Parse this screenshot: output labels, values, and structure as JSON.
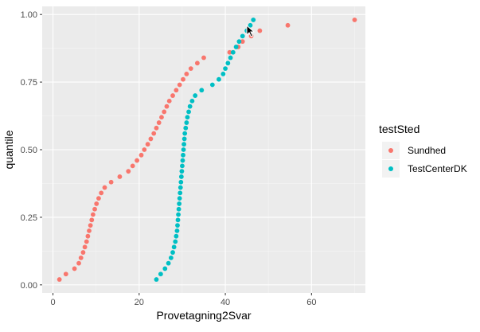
{
  "chart_data": {
    "type": "scatter",
    "xlabel": "Provetagning2Svar",
    "ylabel": "quantile",
    "xlim": [
      -2.5,
      72.5
    ],
    "ylim": [
      -0.03,
      1.03
    ],
    "xticks": [
      0,
      20,
      40,
      60
    ],
    "xtick_labels": [
      "0",
      "20",
      "40",
      "60"
    ],
    "yticks": [
      0.0,
      0.25,
      0.5,
      0.75,
      1.0
    ],
    "ytick_labels": [
      "0.00",
      "0.25",
      "0.50",
      "0.75",
      "1.00"
    ],
    "grid": true,
    "legend": {
      "title": "testSted",
      "position": "right"
    },
    "series": [
      {
        "name": "Sundhed",
        "color": "#F8766D",
        "points": [
          [
            1.5,
            0.02
          ],
          [
            3,
            0.04
          ],
          [
            5,
            0.06
          ],
          [
            6,
            0.08
          ],
          [
            6.5,
            0.1
          ],
          [
            7,
            0.12
          ],
          [
            7.4,
            0.14
          ],
          [
            7.8,
            0.16
          ],
          [
            8.1,
            0.18
          ],
          [
            8.4,
            0.2
          ],
          [
            8.7,
            0.22
          ],
          [
            9,
            0.24
          ],
          [
            9.3,
            0.26
          ],
          [
            9.7,
            0.28
          ],
          [
            10.1,
            0.3
          ],
          [
            10.6,
            0.32
          ],
          [
            11.2,
            0.34
          ],
          [
            12,
            0.36
          ],
          [
            13.5,
            0.38
          ],
          [
            15.5,
            0.4
          ],
          [
            17.5,
            0.42
          ],
          [
            18.5,
            0.44
          ],
          [
            19.5,
            0.46
          ],
          [
            20.5,
            0.48
          ],
          [
            21.2,
            0.5
          ],
          [
            22,
            0.52
          ],
          [
            22.7,
            0.54
          ],
          [
            23.4,
            0.56
          ],
          [
            24,
            0.58
          ],
          [
            24.6,
            0.6
          ],
          [
            25.2,
            0.62
          ],
          [
            25.8,
            0.64
          ],
          [
            26.4,
            0.66
          ],
          [
            27,
            0.68
          ],
          [
            27.8,
            0.7
          ],
          [
            28.6,
            0.72
          ],
          [
            29.4,
            0.74
          ],
          [
            30.2,
            0.76
          ],
          [
            31,
            0.78
          ],
          [
            32,
            0.8
          ],
          [
            33.5,
            0.82
          ],
          [
            35,
            0.84
          ],
          [
            41,
            0.86
          ],
          [
            43,
            0.88
          ],
          [
            44,
            0.9
          ],
          [
            46,
            0.92
          ],
          [
            48,
            0.94
          ],
          [
            54.5,
            0.96
          ],
          [
            70,
            0.98
          ]
        ]
      },
      {
        "name": "TestCenterDK",
        "color": "#00BFC4",
        "points": [
          [
            24,
            0.02
          ],
          [
            25,
            0.04
          ],
          [
            26,
            0.06
          ],
          [
            26.8,
            0.08
          ],
          [
            27.4,
            0.1
          ],
          [
            27.8,
            0.12
          ],
          [
            28.1,
            0.14
          ],
          [
            28.4,
            0.16
          ],
          [
            28.6,
            0.18
          ],
          [
            28.8,
            0.2
          ],
          [
            28.9,
            0.22
          ],
          [
            29,
            0.24
          ],
          [
            29.1,
            0.26
          ],
          [
            29.2,
            0.28
          ],
          [
            29.3,
            0.3
          ],
          [
            29.4,
            0.32
          ],
          [
            29.5,
            0.34
          ],
          [
            29.6,
            0.36
          ],
          [
            29.7,
            0.38
          ],
          [
            29.8,
            0.4
          ],
          [
            29.9,
            0.42
          ],
          [
            30,
            0.44
          ],
          [
            30.1,
            0.46
          ],
          [
            30.2,
            0.48
          ],
          [
            30.3,
            0.5
          ],
          [
            30.4,
            0.52
          ],
          [
            30.5,
            0.54
          ],
          [
            30.6,
            0.56
          ],
          [
            30.8,
            0.58
          ],
          [
            31,
            0.6
          ],
          [
            31.2,
            0.62
          ],
          [
            31.5,
            0.64
          ],
          [
            31.8,
            0.66
          ],
          [
            32.3,
            0.68
          ],
          [
            33,
            0.7
          ],
          [
            34.5,
            0.72
          ],
          [
            37,
            0.74
          ],
          [
            38.5,
            0.76
          ],
          [
            39.5,
            0.78
          ],
          [
            40,
            0.8
          ],
          [
            40.6,
            0.82
          ],
          [
            41.2,
            0.84
          ],
          [
            41.8,
            0.86
          ],
          [
            42.5,
            0.88
          ],
          [
            43.2,
            0.9
          ],
          [
            44,
            0.92
          ],
          [
            45,
            0.94
          ],
          [
            45.8,
            0.96
          ],
          [
            46.5,
            0.98
          ]
        ]
      }
    ]
  }
}
